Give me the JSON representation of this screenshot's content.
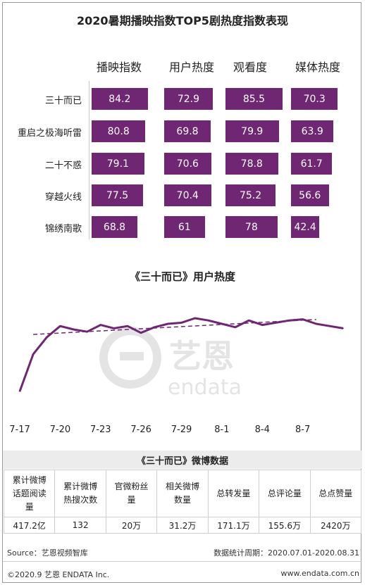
{
  "title": "2020暑期播映指数TOP5剧热度指数表现",
  "chart_data": [
    {
      "type": "bar",
      "columns": [
        "播映指数",
        "用户热度",
        "观看度",
        "媒体热度"
      ],
      "categories": [
        "三十而已",
        "重启之极海听雷",
        "二十不惑",
        "穿越火线",
        "锦绣南歌"
      ],
      "series": [
        {
          "name": "播映指数",
          "values": [
            84.2,
            80.8,
            79.1,
            77.5,
            68.8
          ]
        },
        {
          "name": "用户热度",
          "values": [
            72.9,
            69.8,
            70.6,
            70.4,
            61
          ]
        },
        {
          "name": "观看度",
          "values": [
            85.5,
            79.9,
            78.8,
            75.2,
            78
          ]
        },
        {
          "name": "媒体热度",
          "values": [
            70.3,
            63.9,
            61.7,
            56.6,
            42.4
          ]
        }
      ],
      "bar_color": "#6f2673"
    },
    {
      "type": "line",
      "title": "《三十而已》用户热度",
      "x_ticks": [
        "7-17",
        "7-20",
        "7-23",
        "7-26",
        "7-29",
        "8-1",
        "8-4",
        "8-7"
      ],
      "x": [
        "7-17",
        "7-18",
        "7-19",
        "7-20",
        "7-21",
        "7-22",
        "7-23",
        "7-24",
        "7-25",
        "7-26",
        "7-27",
        "7-28",
        "7-29",
        "7-30",
        "7-31",
        "8-1",
        "8-2",
        "8-3",
        "8-4",
        "8-5",
        "8-6",
        "8-7",
        "8-8",
        "8-9",
        "8-10"
      ],
      "values": [
        15,
        48,
        63,
        73,
        70,
        68,
        74,
        71,
        73,
        67,
        72,
        75,
        76,
        80,
        78,
        75,
        72,
        78,
        74,
        76,
        78,
        79,
        75,
        73,
        71
      ],
      "trendline": true,
      "ylim": [
        0,
        100
      ],
      "line_color": "#6f2673"
    }
  ],
  "weibo": {
    "title": "《三十而已》微博数据",
    "headers": [
      [
        "累计微博",
        "话题阅读",
        "量"
      ],
      [
        "累计微博",
        "热搜次数"
      ],
      [
        "官微粉丝",
        "量"
      ],
      [
        "相关微博",
        "数量"
      ],
      [
        "总转发量"
      ],
      [
        "总评论量"
      ],
      [
        "总点赞量"
      ]
    ],
    "values": [
      "417.2亿",
      "132",
      "20万",
      "31.2万",
      "171.1万",
      "155.6万",
      "2420万"
    ]
  },
  "footer": {
    "source": "Source：艺恩视频智库",
    "period": "数据统计周期：2020.07.01-2020.08.31",
    "copyright": "©2020.9 艺恩 ENDATA Inc.",
    "site": "www.endata.com.cn"
  },
  "watermark": {
    "brand": "艺恩",
    "brand_en": "endata"
  }
}
